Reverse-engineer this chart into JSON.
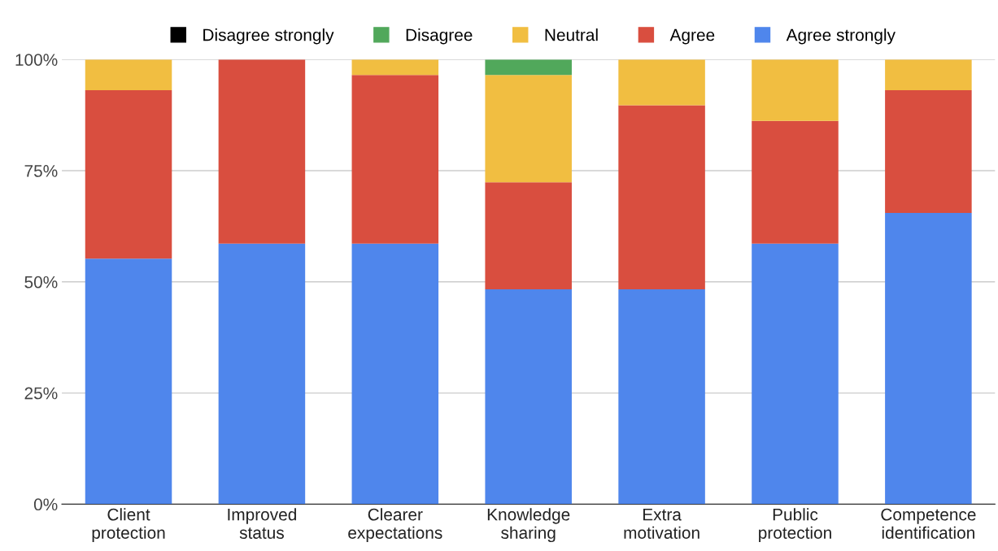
{
  "chart_data": {
    "type": "bar",
    "stacked": true,
    "categories": [
      "Client\nprotection",
      "Improved\nstatus",
      "Clearer\nexpectations",
      "Knowledge\nsharing",
      "Extra\nmotivation",
      "Public\nprotection",
      "Competence\nidentification"
    ],
    "series": [
      {
        "name": "Agree strongly",
        "color": "#4f86ec",
        "values": [
          55.2,
          58.6,
          58.6,
          48.3,
          48.3,
          58.6,
          65.5
        ]
      },
      {
        "name": "Agree",
        "color": "#d94e3f",
        "values": [
          37.9,
          41.4,
          37.9,
          24.1,
          41.4,
          27.6,
          27.6
        ]
      },
      {
        "name": "Neutral",
        "color": "#f1be41",
        "values": [
          6.9,
          0,
          3.5,
          24.1,
          10.3,
          13.8,
          6.9
        ]
      },
      {
        "name": "Disagree",
        "color": "#51a85b",
        "values": [
          0,
          0,
          0,
          3.5,
          0,
          0,
          0
        ]
      },
      {
        "name": "Disagree strongly",
        "color": "#000000",
        "values": [
          0,
          0,
          0,
          0,
          0,
          0,
          0
        ]
      }
    ],
    "ylim": [
      0,
      100
    ],
    "yticks": [
      {
        "value": 0,
        "label": "0%"
      },
      {
        "value": 25,
        "label": "25%"
      },
      {
        "value": 50,
        "label": "50%"
      },
      {
        "value": 75,
        "label": "75%"
      },
      {
        "value": 100,
        "label": "100%"
      }
    ],
    "grid": "y",
    "legend": "top"
  }
}
